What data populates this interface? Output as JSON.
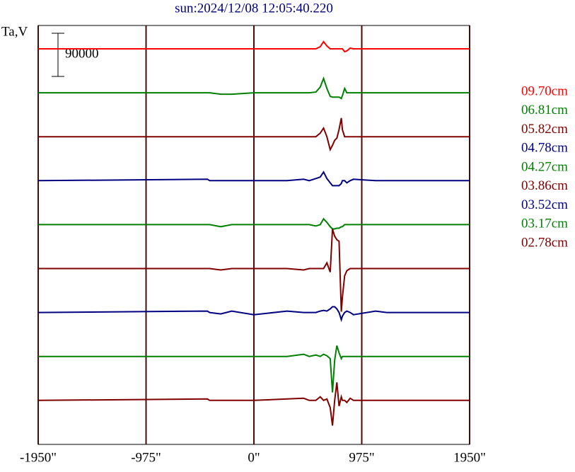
{
  "chart_data": {
    "type": "line",
    "title": "sun:2024/12/08 12:05:40.220",
    "y_label": "Ta,V",
    "scale_bar": 90000,
    "x": [
      -1950,
      -420,
      -400,
      -300,
      -200,
      0,
      300,
      450,
      500,
      560,
      600,
      630,
      660,
      690,
      710,
      730,
      750,
      770,
      790,
      800,
      820,
      840,
      870,
      900,
      1100,
      1200,
      1950
    ],
    "xlim": [
      -1950,
      1950
    ],
    "xticks": [
      {
        "value": -1950,
        "label": "-1950\""
      },
      {
        "value": -975,
        "label": "-975\""
      },
      {
        "value": 0,
        "label": "0\""
      },
      {
        "value": 975,
        "label": "975\""
      },
      {
        "value": 1950,
        "label": "1950\""
      }
    ],
    "grid": true,
    "series": [
      {
        "name": "09.70cm",
        "color": "#ff0000",
        "values": [
          0,
          0,
          0,
          0,
          0,
          0,
          0,
          0,
          0,
          0,
          4500,
          15000,
          6000,
          0,
          0,
          0,
          0,
          0,
          0,
          0,
          -6000,
          -4500,
          1500,
          0,
          0,
          0,
          0
        ]
      },
      {
        "name": "06.81cm",
        "color": "#008000",
        "values": [
          0,
          0,
          0,
          -3000,
          -3000,
          0,
          0,
          0,
          0,
          1500,
          12000,
          30000,
          9000,
          -7500,
          -9000,
          -9000,
          -9000,
          -9000,
          -12000,
          -6000,
          9000,
          0,
          0,
          0,
          0,
          0,
          0
        ]
      },
      {
        "name": "05.82cm",
        "color": "#800000",
        "values": [
          0,
          0,
          0,
          0,
          0,
          0,
          0,
          0,
          0,
          0,
          7500,
          18000,
          0,
          -27000,
          -18000,
          -7500,
          -3000,
          15000,
          39000,
          15000,
          0,
          0,
          0,
          0,
          0,
          0,
          0
        ]
      },
      {
        "name": "04.78cm",
        "color": "#000080",
        "values": [
          0,
          3000,
          0,
          0,
          0,
          0,
          0,
          3000,
          0,
          4500,
          7500,
          18000,
          4500,
          -4500,
          -10500,
          -10500,
          -10500,
          -10500,
          -6000,
          0,
          0,
          -4500,
          0,
          3000,
          0,
          0,
          0
        ]
      },
      {
        "name": "04.27cm",
        "color": "#008000",
        "values": [
          0,
          0,
          0,
          -4500,
          0,
          0,
          0,
          0,
          0,
          -3000,
          0,
          12000,
          4500,
          -4500,
          -9000,
          -9000,
          -7500,
          -7500,
          -4500,
          -4500,
          0,
          0,
          0,
          0,
          0,
          0,
          0
        ]
      },
      {
        "name": "03.86cm",
        "color": "#800000",
        "values": [
          0,
          0,
          0,
          -3000,
          0,
          0,
          0,
          -3000,
          0,
          0,
          0,
          0,
          12000,
          -7500,
          82500,
          67500,
          60000,
          57000,
          -90000,
          -60000,
          -15000,
          -4500,
          0,
          0,
          0,
          0,
          0
        ]
      },
      {
        "name": "03.52cm",
        "color": "#000080",
        "values": [
          0,
          3000,
          0,
          -3000,
          3000,
          -4500,
          3000,
          0,
          0,
          0,
          3000,
          4500,
          3000,
          7500,
          12000,
          12000,
          7500,
          0,
          -15000,
          -7500,
          0,
          3000,
          0,
          -4500,
          3000,
          0,
          0
        ]
      },
      {
        "name": "03.17cm",
        "color": "#008000",
        "values": [
          0,
          0,
          0,
          0,
          0,
          0,
          0,
          4500,
          0,
          3000,
          0,
          4500,
          1500,
          -4500,
          -75000,
          -7500,
          22500,
          7500,
          -4500,
          0,
          0,
          0,
          0,
          0,
          0,
          0,
          0
        ]
      },
      {
        "name": "02.78cm",
        "color": "#800000",
        "values": [
          0,
          3000,
          0,
          0,
          0,
          0,
          3000,
          4500,
          0,
          0,
          7500,
          0,
          3000,
          -15000,
          -52500,
          0,
          37500,
          -12000,
          7500,
          0,
          0,
          -4500,
          4500,
          0,
          0,
          0,
          0
        ]
      }
    ]
  }
}
